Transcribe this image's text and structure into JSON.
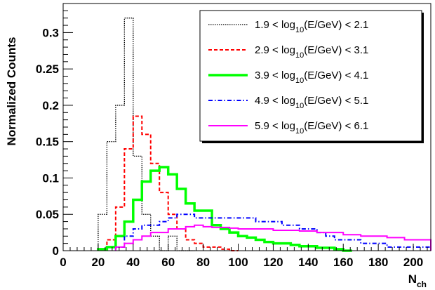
{
  "chart_data": {
    "type": "line",
    "style": "step-histogram",
    "ylabel": "Normalized Counts",
    "xlabel_main": "N",
    "xlabel_sub": "ch",
    "xlim": [
      0,
      210
    ],
    "ylim": [
      0,
      0.34
    ],
    "x_ticks": [
      0,
      20,
      40,
      60,
      80,
      100,
      120,
      140,
      160,
      180,
      200
    ],
    "x_tick_labels": [
      "0",
      "20",
      "40",
      "60",
      "80",
      "100",
      "120",
      "140",
      "160",
      "180",
      "200"
    ],
    "y_ticks": [
      0,
      0.05,
      0.1,
      0.15,
      0.2,
      0.25,
      0.3
    ],
    "y_tick_labels": [
      "0",
      "0.05",
      "0.1",
      "0.15",
      "0.2",
      "0.25",
      "0.3"
    ],
    "bin_width": 5,
    "legend_position": "top-right",
    "series": [
      {
        "label_parts": [
          "1.9 < log",
          "10",
          "(E/GeV) < 2.1"
        ],
        "color": "#000000",
        "dash": "dotted",
        "x": [
          20,
          25,
          30,
          35,
          40,
          45,
          50,
          55,
          60,
          65,
          70
        ],
        "values": [
          0.05,
          0.15,
          0.2,
          0.32,
          0.13,
          0.05,
          0.02,
          0.0,
          0.02,
          0.0,
          0.0
        ]
      },
      {
        "label_parts": [
          "2.9 < log",
          "10",
          "(E/GeV) < 3.1"
        ],
        "color": "#ff0000",
        "dash": "dashed",
        "x": [
          25,
          30,
          35,
          40,
          45,
          50,
          55,
          60,
          65,
          70,
          75,
          80,
          85,
          90,
          95
        ],
        "values": [
          0.015,
          0.06,
          0.14,
          0.185,
          0.16,
          0.12,
          0.08,
          0.05,
          0.03,
          0.015,
          0.01,
          0.005,
          0.005,
          0.002,
          0.0
        ]
      },
      {
        "label_parts": [
          "3.9 < log",
          "10",
          "(E/GeV) < 4.1"
        ],
        "color": "#00ff00",
        "dash": "solid",
        "x": [
          20,
          25,
          30,
          35,
          40,
          45,
          50,
          55,
          60,
          65,
          70,
          75,
          80,
          85,
          90,
          95,
          100,
          105,
          110,
          115,
          120,
          125,
          130,
          135,
          140,
          145,
          150,
          155,
          160
        ],
        "values": [
          0.002,
          0.005,
          0.02,
          0.04,
          0.07,
          0.095,
          0.11,
          0.115,
          0.105,
          0.085,
          0.065,
          0.055,
          0.055,
          0.035,
          0.03,
          0.025,
          0.02,
          0.018,
          0.015,
          0.012,
          0.01,
          0.01,
          0.008,
          0.006,
          0.006,
          0.004,
          0.004,
          0.002,
          0.0
        ]
      },
      {
        "label_parts": [
          "4.9 < log",
          "10",
          "(E/GeV) < 5.1"
        ],
        "color": "#0000ff",
        "dash": "dashdot",
        "x": [
          30,
          35,
          40,
          45,
          50,
          55,
          60,
          65,
          70,
          75,
          80,
          85,
          90,
          95,
          100,
          105,
          110,
          115,
          120,
          125,
          130,
          135,
          140,
          145,
          150,
          155,
          160,
          165,
          170,
          175,
          180,
          185,
          190,
          195,
          200,
          205
        ],
        "values": [
          0.005,
          0.02,
          0.03,
          0.035,
          0.035,
          0.04,
          0.045,
          0.05,
          0.05,
          0.045,
          0.045,
          0.045,
          0.045,
          0.045,
          0.045,
          0.045,
          0.04,
          0.04,
          0.04,
          0.035,
          0.035,
          0.03,
          0.03,
          0.025,
          0.02,
          0.015,
          0.015,
          0.015,
          0.01,
          0.01,
          0.01,
          0.005,
          0.005,
          0.005,
          0.005,
          0.005
        ]
      },
      {
        "label_parts": [
          "5.9 < log",
          "10",
          "(E/GeV) < 6.1"
        ],
        "color": "#ff00ff",
        "dash": "solid",
        "x": [
          30,
          35,
          40,
          45,
          50,
          55,
          60,
          65,
          70,
          75,
          80,
          85,
          90,
          95,
          100,
          105,
          110,
          115,
          120,
          125,
          130,
          135,
          140,
          145,
          150,
          155,
          160,
          165,
          170,
          175,
          180,
          185,
          190,
          195,
          200,
          205
        ],
        "values": [
          0.005,
          0.01,
          0.015,
          0.02,
          0.025,
          0.025,
          0.03,
          0.03,
          0.033,
          0.035,
          0.033,
          0.032,
          0.032,
          0.031,
          0.03,
          0.03,
          0.03,
          0.03,
          0.028,
          0.028,
          0.028,
          0.027,
          0.027,
          0.025,
          0.025,
          0.025,
          0.022,
          0.022,
          0.02,
          0.02,
          0.02,
          0.018,
          0.018,
          0.015,
          0.015,
          0.015
        ]
      }
    ]
  }
}
